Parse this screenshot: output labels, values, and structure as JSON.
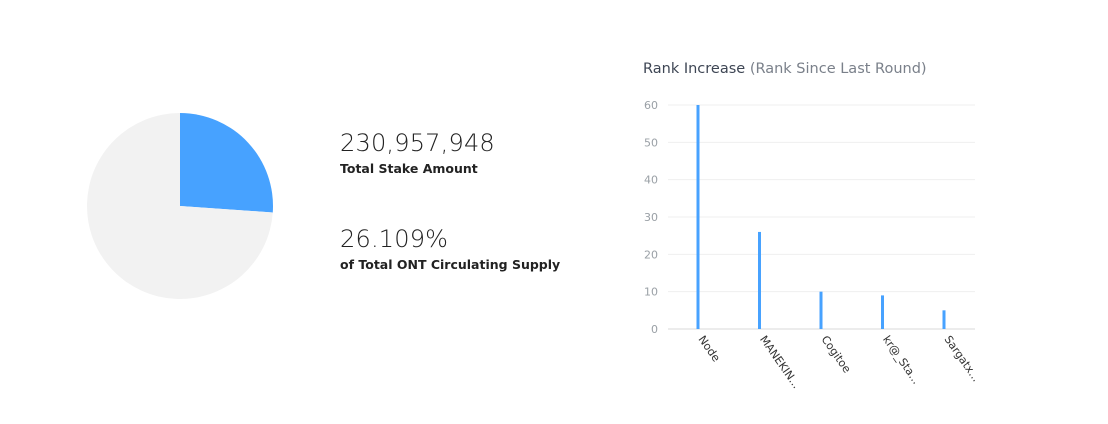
{
  "stats": {
    "total_stake_value": "230,957,948",
    "total_stake_label": "Total Stake Amount",
    "percent_value": "26.109%",
    "percent_label": "of Total ONT Circulating Supply"
  },
  "colors": {
    "accent": "#47a2ff",
    "pie_rest": "#f2f2f2",
    "grid": "#efefef",
    "axis": "#d8d8d8"
  },
  "chart_data": [
    {
      "type": "pie",
      "slices": [
        {
          "label": "Total Stake Amount",
          "value": 26.109,
          "color": "#47a2ff"
        },
        {
          "label": "",
          "value": 73.891,
          "color": "#f2f2f2"
        }
      ]
    },
    {
      "type": "bar",
      "title": "Rank Increase",
      "subtitle": "(Rank Since Last Round)",
      "categories": [
        "Node",
        "MANEKIN...",
        "Cogitoe",
        "kr@_Sta...",
        "Sargatx..."
      ],
      "series": [
        {
          "values": [
            60,
            26,
            10,
            9,
            5
          ]
        }
      ],
      "ylim": [
        0,
        60
      ],
      "yticks": [
        0,
        10,
        20,
        30,
        40,
        50,
        60
      ],
      "grid": true,
      "color": "#47a2ff"
    }
  ]
}
